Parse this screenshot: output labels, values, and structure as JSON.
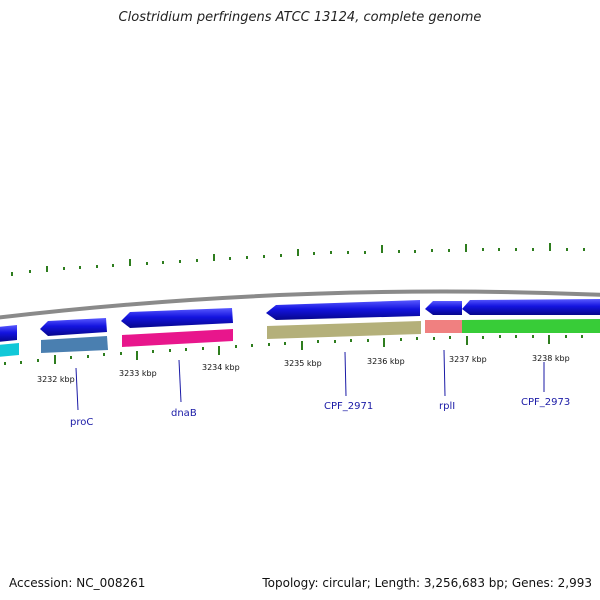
{
  "title": "Clostridium perfringens ATCC 13124, complete genome",
  "footer": {
    "accession": "Accession: NC_008261",
    "topology": "Topology: circular; Length: 3,256,683 bp; Genes: 2,993"
  },
  "colors": {
    "forward_strand": "#1414e0",
    "backbone": "#8a8a8a",
    "tick": "#2e7d1e",
    "label": "#1a1aa6"
  },
  "kbp_ticks": [
    "3232 kbp",
    "3233 kbp",
    "3234 kbp",
    "3235 kbp",
    "3236 kbp",
    "3237 kbp",
    "3238 kbp"
  ],
  "gene_labels": [
    "proC",
    "dnaB",
    "CPF_2971",
    "rplI",
    "CPF_2973"
  ],
  "features": [
    {
      "name": "cyan-feature",
      "color": "#11c8d8"
    },
    {
      "name": "proC-feature",
      "color": "#4a7fb0"
    },
    {
      "name": "dnaB-feature",
      "color": "#e8168c"
    },
    {
      "name": "CPF_2971-feature",
      "color": "#b4b07a"
    },
    {
      "name": "rplI-feature",
      "color": "#f08080"
    },
    {
      "name": "CPF_2973-feature",
      "color": "#38cc38"
    }
  ]
}
